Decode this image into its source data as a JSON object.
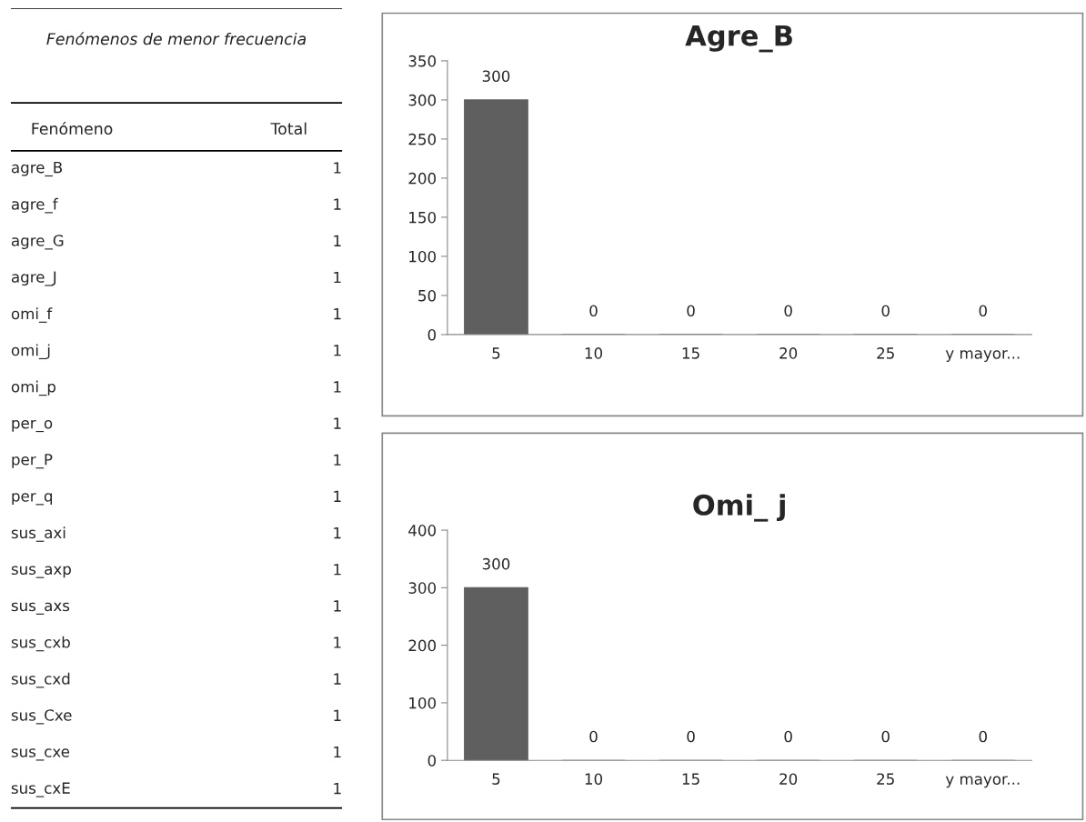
{
  "chart_data": [
    {
      "type": "other",
      "title": "Fenómenos de menor frecuencia",
      "annotations": [
        "Fenómeno",
        "Total"
      ],
      "categories": [
        "agre_B",
        "agre_f",
        "agre_G",
        "agre_J",
        "omi_f",
        "omi_j",
        "omi_p",
        "per_o",
        "per_P",
        "per_q",
        "sus_axi",
        "sus_axp",
        "sus_axs",
        "sus_cxb",
        "sus_cxd",
        "sus_Cxe",
        "sus_cxe",
        "sus_cxE"
      ],
      "values": [
        1,
        1,
        1,
        1,
        1,
        1,
        1,
        1,
        1,
        1,
        1,
        1,
        1,
        1,
        1,
        1,
        1,
        1
      ],
      "data_labels": true
    },
    {
      "type": "bar",
      "title": "Agre_B",
      "categories": [
        "5",
        "10",
        "15",
        "20",
        "25",
        "y mayor..."
      ],
      "values": [
        300,
        0,
        0,
        0,
        0,
        0
      ],
      "color": "#5f5f5f",
      "ylim": [
        0,
        350
      ],
      "yticks": [
        0,
        50,
        100,
        150,
        200,
        250,
        300,
        350
      ],
      "data_labels": true,
      "grid": false,
      "legend": false
    },
    {
      "type": "bar",
      "title": "Omi_ j",
      "categories": [
        "5",
        "10",
        "15",
        "20",
        "25",
        "y mayor..."
      ],
      "values": [
        300,
        0,
        0,
        0,
        0,
        0
      ],
      "color": "#5f5f5f",
      "ylim": [
        0,
        400
      ],
      "yticks": [
        0,
        100,
        200,
        300,
        400
      ],
      "data_labels": true,
      "grid": false,
      "legend": false
    }
  ]
}
